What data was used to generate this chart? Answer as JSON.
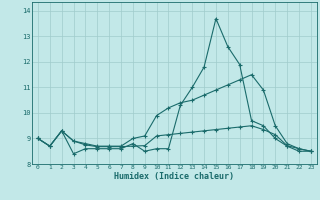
{
  "title": "",
  "xlabel": "Humidex (Indice chaleur)",
  "ylabel": "",
  "background_color": "#c2e8e8",
  "grid_color": "#a0cccc",
  "line_color": "#1a6b6b",
  "xlim": [
    -0.5,
    23.5
  ],
  "ylim": [
    8.0,
    14.35
  ],
  "yticks": [
    8,
    9,
    10,
    11,
    12,
    13,
    14
  ],
  "xticks": [
    0,
    1,
    2,
    3,
    4,
    5,
    6,
    7,
    8,
    9,
    10,
    11,
    12,
    13,
    14,
    15,
    16,
    17,
    18,
    19,
    20,
    21,
    22,
    23
  ],
  "x": [
    0,
    1,
    2,
    3,
    4,
    5,
    6,
    7,
    8,
    9,
    10,
    11,
    12,
    13,
    14,
    15,
    16,
    17,
    18,
    19,
    20,
    21,
    22,
    23
  ],
  "line1": [
    9.0,
    8.7,
    9.3,
    8.4,
    8.6,
    8.6,
    8.6,
    8.6,
    8.8,
    8.5,
    8.6,
    8.6,
    10.3,
    11.0,
    11.8,
    13.7,
    12.6,
    11.9,
    9.7,
    9.5,
    9.0,
    8.7,
    8.5,
    8.5
  ],
  "line2": [
    9.0,
    8.7,
    9.3,
    8.9,
    8.8,
    8.7,
    8.7,
    8.7,
    9.0,
    9.1,
    9.9,
    10.2,
    10.4,
    10.5,
    10.7,
    10.9,
    11.1,
    11.3,
    11.5,
    10.9,
    9.5,
    8.8,
    8.6,
    8.5
  ],
  "line3": [
    9.0,
    8.7,
    9.3,
    8.9,
    8.75,
    8.68,
    8.68,
    8.68,
    8.7,
    8.72,
    9.1,
    9.15,
    9.2,
    9.25,
    9.3,
    9.35,
    9.4,
    9.45,
    9.5,
    9.35,
    9.15,
    8.72,
    8.6,
    8.5
  ]
}
